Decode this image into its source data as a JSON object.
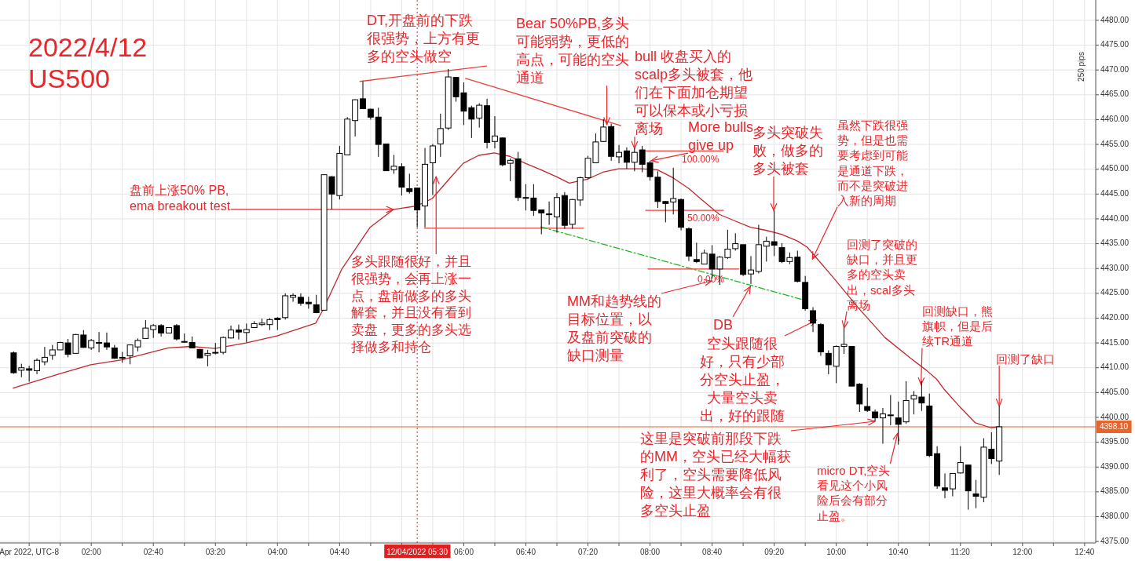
{
  "chart_data": {
    "type": "candlestick",
    "title": "2022/4/12",
    "subtitle": "US500",
    "color": "#000000",
    "x": [
      1.1667,
      1.25,
      1.3333,
      1.4167,
      1.5,
      1.5833,
      1.6667,
      1.75,
      1.8333,
      1.9167,
      2,
      2.0833,
      2.1667,
      2.25,
      2.3333,
      2.4167,
      2.5,
      2.5833,
      2.6667,
      2.75,
      2.8333,
      2.9167,
      3,
      3.0833,
      3.1667,
      3.25,
      3.3333,
      3.4167,
      3.5,
      3.5833,
      3.6667,
      3.75,
      3.8333,
      3.9167,
      4,
      4.0833,
      4.1667,
      4.25,
      4.3333,
      4.4167,
      4.5,
      4.5833,
      4.6667,
      4.75,
      4.8333,
      4.9167,
      5,
      5.0833,
      5.1667,
      5.25,
      5.3333,
      5.4167,
      5.5,
      5.5833,
      5.6667,
      5.75,
      5.8333,
      5.9167,
      6,
      6.0833,
      6.1667,
      6.25,
      6.3333,
      6.4167,
      6.5,
      6.5833,
      6.6667,
      6.75,
      6.8333,
      6.9167,
      7,
      7.0833,
      7.1667,
      7.25,
      7.3333,
      7.4167,
      7.5,
      7.5833,
      7.6667,
      7.75,
      7.8333,
      7.9167,
      8,
      8.0833,
      8.1667,
      8.25,
      8.3333,
      8.4167,
      8.5,
      8.5833,
      8.6667,
      8.75,
      8.8333,
      8.9167,
      9,
      9.0833,
      9.1667,
      9.25,
      9.3333,
      9.4167,
      9.5,
      9.5833,
      9.6667,
      9.75,
      9.8333,
      9.9167,
      10,
      10.0833,
      10.1667,
      10.25,
      10.3333,
      10.4167,
      10.5,
      10.5833,
      10.6667,
      10.75,
      10.8333,
      10.9167,
      11,
      11.0833,
      11.1667,
      11.25,
      11.3333,
      11.4167,
      11.5,
      11.5833,
      11.6667,
      11.75
    ],
    "ohlc": [
      [
        4413.0,
        4413.3,
        4408.8,
        4409.0
      ],
      [
        4409.5,
        4410.8,
        4408.1,
        4410.0
      ],
      [
        4409.8,
        4410.4,
        4407.2,
        4409.5
      ],
      [
        4409.4,
        4411.9,
        4408.7,
        4411.5
      ],
      [
        4411.2,
        4414.2,
        4410.5,
        4412.1
      ],
      [
        4412.5,
        4414.6,
        4411.6,
        4413.6
      ],
      [
        4413.6,
        4415.2,
        4413.6,
        4415.1
      ],
      [
        4415.0,
        4415.8,
        4412.1,
        4412.7
      ],
      [
        4412.9,
        4416.8,
        4412.8,
        4416.7
      ],
      [
        4416.6,
        4417.6,
        4414.0,
        4414.1
      ],
      [
        4414.0,
        4415.8,
        4413.6,
        4415.5
      ],
      [
        4415.1,
        4417.2,
        4413.1,
        4415.0
      ],
      [
        4415.0,
        4417.1,
        4413.6,
        4414.2
      ],
      [
        4414.0,
        4414.6,
        4411.8,
        4411.9
      ],
      [
        4412.0,
        4413.2,
        4411.0,
        4412.1
      ],
      [
        4412.4,
        4414.7,
        4410.7,
        4414.6
      ],
      [
        4414.2,
        4415.9,
        4413.3,
        4415.5
      ],
      [
        4415.9,
        4419.6,
        4415.9,
        4418.0
      ],
      [
        4417.7,
        4418.8,
        4416.0,
        4418.5
      ],
      [
        4418.5,
        4418.8,
        4416.3,
        4417.0
      ],
      [
        4417.0,
        4418.1,
        4417.0,
        4418.1
      ],
      [
        4418.5,
        4418.8,
        4415.5,
        4415.8
      ],
      [
        4415.3,
        4416.9,
        4415.0,
        4415.2
      ],
      [
        4415.1,
        4416.3,
        4413.9,
        4414.0
      ],
      [
        4413.7,
        4413.8,
        4411.9,
        4412.0
      ],
      [
        4412.5,
        4413.6,
        4410.3,
        4412.9
      ],
      [
        4413.0,
        4415.0,
        4412.7,
        4413.1
      ],
      [
        4413.1,
        4416.3,
        4412.7,
        4416.1
      ],
      [
        4416.0,
        4418.5,
        4415.9,
        4417.6
      ],
      [
        4417.6,
        4418.7,
        4415.7,
        4417.2
      ],
      [
        4417.1,
        4418.9,
        4415.1,
        4417.7
      ],
      [
        4418.1,
        4419.4,
        4418.0,
        4418.9
      ],
      [
        4418.7,
        4419.9,
        4418.4,
        4419.0
      ],
      [
        4418.7,
        4420.0,
        4417.6,
        4419.7
      ],
      [
        4420.0,
        4420.2,
        4417.6,
        4419.7
      ],
      [
        4420.1,
        4425.0,
        4419.7,
        4424.5
      ],
      [
        4424.2,
        4425.0,
        4423.3,
        4424.6
      ],
      [
        4424.2,
        4425.0,
        4422.5,
        4423.0
      ],
      [
        4423.2,
        4424.3,
        4421.9,
        4422.9
      ],
      [
        4422.7,
        4424.7,
        4421.0,
        4421.1
      ],
      [
        4421.6,
        4448.9,
        4421.5,
        4448.9
      ],
      [
        4448.5,
        4448.6,
        4441.9,
        4445.0
      ],
      [
        4444.7,
        4454.7,
        4443.9,
        4453.2
      ],
      [
        4452.9,
        4460.5,
        4452.9,
        4460.1
      ],
      [
        4459.8,
        4464.1,
        4456.6,
        4464.0
      ],
      [
        4464.2,
        4467.7,
        4462.2,
        4462.2
      ],
      [
        4462.1,
        4462.2,
        4460.0,
        4460.5
      ],
      [
        4460.5,
        4462.4,
        4452.5,
        4455.0
      ],
      [
        4455.1,
        4455.1,
        4449.7,
        4449.7
      ],
      [
        4449.9,
        4452.9,
        4449.1,
        4450.6
      ],
      [
        4450.5,
        4451.2,
        4444.7,
        4446.4
      ],
      [
        4446.1,
        4449.1,
        4445.1,
        4445.5
      ],
      [
        4446.2,
        4446.2,
        4438.3,
        4441.8
      ],
      [
        4442.6,
        4454.3,
        4438.3,
        4451.0
      ],
      [
        4451.3,
        4455.1,
        4444.8,
        4454.7
      ],
      [
        4455.1,
        4461.2,
        4452.5,
        4458.2
      ],
      [
        4458.3,
        4470.2,
        4457.9,
        4468.6
      ],
      [
        4468.5,
        4468.5,
        4463.6,
        4464.6
      ],
      [
        4465.4,
        4467.5,
        4458.9,
        4461.7
      ],
      [
        4462.4,
        4462.8,
        4456.3,
        4460.1
      ],
      [
        4460.3,
        4463.3,
        4458.4,
        4462.9
      ],
      [
        4462.8,
        4464.2,
        4454.2,
        4455.4
      ],
      [
        4455.6,
        4460.7,
        4454.2,
        4456.7
      ],
      [
        4456.3,
        4456.4,
        4450.6,
        4450.9
      ],
      [
        4451.2,
        4452.2,
        4447.6,
        4451.8
      ],
      [
        4452.1,
        4453.5,
        4443.6,
        4444.3
      ],
      [
        4444.3,
        4447.0,
        4441.7,
        4444.2
      ],
      [
        4444.2,
        4447.0,
        4440.6,
        4441.7
      ],
      [
        4441.8,
        4441.8,
        4436.9,
        4441.2
      ],
      [
        4441.0,
        4443.5,
        4438.8,
        4440.9
      ],
      [
        4440.4,
        4445.2,
        4437.2,
        4444.3
      ],
      [
        4444.7,
        4445.4,
        4438.0,
        4438.7
      ],
      [
        4438.9,
        4444.0,
        4438.0,
        4443.9
      ],
      [
        4443.8,
        4448.5,
        4442.6,
        4448.3
      ],
      [
        4448.3,
        4452.7,
        4448.0,
        4452.2
      ],
      [
        4451.3,
        4457.2,
        4451.2,
        4455.5
      ],
      [
        4455.6,
        4460.1,
        4455.5,
        4458.5
      ],
      [
        4458.6,
        4459.2,
        4451.7,
        4452.6
      ],
      [
        4452.5,
        4454.9,
        4451.2,
        4453.4
      ],
      [
        4453.7,
        4454.4,
        4450.1,
        4451.4
      ],
      [
        4451.4,
        4454.2,
        4449.6,
        4453.4
      ],
      [
        4453.9,
        4454.7,
        4449.4,
        4451.0
      ],
      [
        4451.3,
        4451.7,
        4447.7,
        4448.5
      ],
      [
        4448.4,
        4449.6,
        4442.2,
        4443.5
      ],
      [
        4443.5,
        4443.6,
        4439.3,
        4443.1
      ],
      [
        4443.4,
        4450.3,
        4440.9,
        4444.1
      ],
      [
        4443.9,
        4444.1,
        4437.7,
        4438.3
      ],
      [
        4438.0,
        4438.3,
        4431.5,
        4432.5
      ],
      [
        4431.8,
        4435.2,
        4431.1,
        4431.4
      ],
      [
        4430.9,
        4433.8,
        4430.9,
        4433.1
      ],
      [
        4432.9,
        4434.7,
        4428.0,
        4429.9
      ],
      [
        4429.9,
        4432.5,
        4426.7,
        4432.3
      ],
      [
        4432.2,
        4437.8,
        4431.9,
        4433.9
      ],
      [
        4434.0,
        4437.1,
        4433.6,
        4435.0
      ],
      [
        4434.8,
        4434.8,
        4428.5,
        4428.8
      ],
      [
        4428.9,
        4432.5,
        4426.9,
        4429.7
      ],
      [
        4429.4,
        4438.8,
        4429.0,
        4434.8
      ],
      [
        4434.5,
        4436.4,
        4431.4,
        4435.5
      ],
      [
        4435.4,
        4441.7,
        4432.5,
        4434.7
      ],
      [
        4434.2,
        4435.1,
        4431.1,
        4431.4
      ],
      [
        4431.4,
        4433.2,
        4430.9,
        4432.2
      ],
      [
        4432.3,
        4433.6,
        4427.2,
        4427.4
      ],
      [
        4427.2,
        4428.5,
        4421.5,
        4421.9
      ],
      [
        4421.5,
        4422.2,
        4417.2,
        4419.0
      ],
      [
        4418.7,
        4419.0,
        4412.4,
        4413.2
      ],
      [
        4412.9,
        4413.5,
        4408.7,
        4410.6
      ],
      [
        4410.3,
        4414.5,
        4406.9,
        4414.3
      ],
      [
        4414.3,
        4418.0,
        4412.8,
        4414.7
      ],
      [
        4414.3,
        4414.3,
        4406.3,
        4406.3
      ],
      [
        4406.7,
        4406.9,
        4401.1,
        4402.7
      ],
      [
        4402.2,
        4406.0,
        4401.1,
        4401.4
      ],
      [
        4401.1,
        4401.6,
        4399.2,
        4399.9
      ],
      [
        4399.9,
        4401.9,
        4394.7,
        4400.7
      ],
      [
        4400.4,
        4404.5,
        4398.4,
        4400.5
      ],
      [
        4399.9,
        4403.2,
        4394.5,
        4398.6
      ],
      [
        4399.1,
        4407.3,
        4398.7,
        4403.4
      ],
      [
        4403.7,
        4405.3,
        4400.6,
        4404.4
      ],
      [
        4404.1,
        4407.3,
        4401.3,
        4402.9
      ],
      [
        4402.3,
        4404.8,
        4392.0,
        4392.3
      ],
      [
        4392.7,
        4394.2,
        4385.6,
        4386.2
      ],
      [
        4385.8,
        4388.7,
        4383.7,
        4385.3
      ],
      [
        4385.6,
        4388.7,
        4384.1,
        4388.7
      ],
      [
        4388.8,
        4394.2,
        4388.7,
        4390.9
      ],
      [
        4390.4,
        4390.4,
        4381.4,
        4385.2
      ],
      [
        4384.6,
        4387.4,
        4381.7,
        4384.1
      ],
      [
        4383.9,
        4395.8,
        4382.9,
        4394.0
      ],
      [
        4393.6,
        4397.0,
        4390.6,
        4391.7
      ],
      [
        4391.2,
        4402.3,
        4388.4,
        4398.1
      ]
    ],
    "series": [
      {
        "type": "line",
        "color": "#c0282d",
        "x": [
          1.161,
          1.661,
          1.994,
          2.328,
          2.828,
          3.078,
          3.328,
          3.661,
          3.994,
          4.411,
          4.494,
          4.688,
          4.994,
          5.244,
          5.494,
          5.661,
          5.828,
          5.994,
          6.161,
          6.328,
          6.494,
          6.661,
          6.828,
          6.994,
          7.133,
          7.328,
          7.494,
          7.661,
          7.911,
          8.078,
          8.244,
          8.411,
          8.578,
          8.744,
          8.911,
          9.078,
          9.244,
          9.411,
          9.578,
          9.688,
          9.967,
          10.244,
          10.522,
          10.8,
          10.967,
          11.078,
          11.161,
          11.328,
          11.494,
          11.661,
          11.744
        ],
        "values": [
          4405.9,
          4408.8,
          4410.6,
          4411.6,
          4414.0,
          4414.3,
          4413.9,
          4415.0,
          4416.4,
          4419.0,
          4421.9,
          4429.8,
          4438.3,
          4441.9,
          4442.6,
          4444.1,
          4447.7,
          4451.2,
          4452.8,
          4453.3,
          4452.6,
          4451.2,
          4449.9,
          4448.5,
          4447.2,
          4448.0,
          4449.4,
          4450.1,
          4450.1,
          4449.9,
          4448.3,
          4446.2,
          4443.5,
          4440.9,
          4439.6,
          4438.3,
          4437.7,
          4436.9,
          4435.6,
          4434.3,
          4428.2,
          4421.9,
          4416.1,
          4411.9,
          4409.5,
          4407.7,
          4405.6,
          4402.1,
          4398.9,
          4397.9,
          4398.1
        ]
      },
      {
        "type": "line",
        "color": "#e8413c",
        "x": [
          4.886,
          6.245
        ],
        "values": [
          4467.7,
          4470.8
        ]
      },
      {
        "type": "line",
        "color": "#e8413c",
        "x": [
          6.019,
          7.686
        ],
        "values": [
          4468.3,
          4458.8
        ]
      },
      {
        "type": "line",
        "color": "#e8413c",
        "x": [
          5.578,
          7.286
        ],
        "values": [
          4438.1,
          4438.1
        ]
      },
      {
        "type": "line",
        "color": "#22b822",
        "line_style": "dashed",
        "x": [
          6.828,
          9.661
        ],
        "values": [
          4438.4,
          4423.6
        ]
      },
      {
        "type": "line",
        "color": "#e8413c",
        "x": [
          7.954,
          8.787
        ],
        "values": [
          4453.7,
          4453.7
        ]
      },
      {
        "type": "line",
        "color": "#e8413c",
        "x": [
          7.954,
          8.787
        ],
        "values": [
          4441.7,
          4441.7
        ]
      },
      {
        "type": "line",
        "color": "#e8413c",
        "x": [
          7.979,
          8.953
        ],
        "values": [
          4429.9,
          4429.9
        ]
      }
    ],
    "xlim": [
      1.02,
      12.786
    ],
    "ylim": [
      4374.7,
      4484.1
    ],
    "xticks": [
      {
        "value": 1.3333,
        "label": "Apr 2022, UTC-8"
      },
      {
        "value": 1.6667,
        "label": null
      },
      {
        "value": 2,
        "label": "02:00"
      },
      {
        "value": 2.3333,
        "label": null
      },
      {
        "value": 2.6667,
        "label": "02:40"
      },
      {
        "value": 3,
        "label": null
      },
      {
        "value": 3.3333,
        "label": "03:20"
      },
      {
        "value": 3.6667,
        "label": null
      },
      {
        "value": 4,
        "label": "04:00"
      },
      {
        "value": 4.3333,
        "label": null
      },
      {
        "value": 4.6667,
        "label": "04:40"
      },
      {
        "value": 5,
        "label": null
      },
      {
        "value": 5.3333,
        "label": null
      },
      {
        "value": 5.6667,
        "label": null
      },
      {
        "value": 6,
        "label": "06:00"
      },
      {
        "value": 6.3333,
        "label": null
      },
      {
        "value": 6.6667,
        "label": "06:40"
      },
      {
        "value": 7,
        "label": null
      },
      {
        "value": 7.3333,
        "label": "07:20"
      },
      {
        "value": 7.6667,
        "label": null
      },
      {
        "value": 8,
        "label": "08:00"
      },
      {
        "value": 8.3333,
        "label": null
      },
      {
        "value": 8.6667,
        "label": "08:40"
      },
      {
        "value": 9,
        "label": null
      },
      {
        "value": 9.3333,
        "label": "09:20"
      },
      {
        "value": 9.6667,
        "label": null
      },
      {
        "value": 10,
        "label": "10:00"
      },
      {
        "value": 10.3333,
        "label": null
      },
      {
        "value": 10.6667,
        "label": "10:40"
      },
      {
        "value": 11,
        "label": null
      },
      {
        "value": 11.3333,
        "label": "11:20"
      },
      {
        "value": 11.6667,
        "label": null
      },
      {
        "value": 12,
        "label": "12:00"
      },
      {
        "value": 12.3333,
        "label": null
      },
      {
        "value": 12.6667,
        "label": "12:40"
      }
    ],
    "yticks": [
      {
        "value": 4375,
        "label": "4375.00"
      },
      {
        "value": 4380,
        "label": "4380.00"
      },
      {
        "value": 4385,
        "label": "4385.00"
      },
      {
        "value": 4390,
        "label": "4390.00"
      },
      {
        "value": 4395,
        "label": "4395.00"
      },
      {
        "value": 4400,
        "label": "4400.00"
      },
      {
        "value": 4405,
        "label": "4405.00"
      },
      {
        "value": 4410,
        "label": "4410.00"
      },
      {
        "value": 4415,
        "label": "4415.00"
      },
      {
        "value": 4420,
        "label": "4420.00"
      },
      {
        "value": 4425,
        "label": "4425.00"
      },
      {
        "value": 4430,
        "label": "4430.00"
      },
      {
        "value": 4435,
        "label": "4435.00"
      },
      {
        "value": 4440,
        "label": "4440.00"
      },
      {
        "value": 4445,
        "label": "4445.00"
      },
      {
        "value": 4450,
        "label": "4450.00"
      },
      {
        "value": 4455,
        "label": "4455.00"
      },
      {
        "value": 4460,
        "label": "4460.00"
      },
      {
        "value": 4465,
        "label": "4465.00"
      },
      {
        "value": 4470,
        "label": "4470.00"
      },
      {
        "value": 4475,
        "label": "4475.00"
      },
      {
        "value": 4480,
        "label": "4480.00"
      }
    ],
    "grid": true,
    "ref_lines": [
      {
        "axis": "x",
        "value": 5.5,
        "label": "12/04/2022 05:30",
        "color": "#e02020",
        "line_style": "dotted"
      },
      {
        "axis": "y",
        "value": 4398.1,
        "label": "4398.10",
        "color": "#e8642c",
        "line_style": "solid"
      }
    ],
    "annotations": [
      "DT,开盘前的下跌很强势，上方有更多的空头做空",
      {
        "text": "Bear 50%PB,多头可能弱势，更低的高点，可能的空头通道",
        "x": 7.536,
        "y": 4459.0
      },
      {
        "text": "bull 收盘买入的scalp多头被套，他们在下面加仓期望可以保本或小亏损离场",
        "x": 7.8333,
        "y": 4454.2
      },
      {
        "text": "More bulls give up",
        "x": 8.011,
        "y": 4451.7
      },
      {
        "text": "多头突破失败，做多的多头被套",
        "x": 9.328,
        "y": 4441.7
      },
      {
        "text": "虽然下跌很强势，但是也需要考虑到可能是通道下跌，而不是突破进入新的周期",
        "x": 9.744,
        "y": 4431.9
      },
      {
        "text": "回测了突破的缺口，并且更多的空头卖出，scal多头离场",
        "x": 10.0833,
        "y": 4418.0
      },
      {
        "text": "回测缺口，熊旗帜，但是后续TR通道",
        "x": 10.91,
        "y": 4406.6
      },
      {
        "text": "回测了缺口",
        "x": 11.75,
        "y": 4402.3
      },
      {
        "text": "盘前上涨50% PB, ema breakout test",
        "x": 5.244,
        "y": 4441.9
      },
      {
        "text": "多头跟随很好，并且很强势，会再上涨一点，盘前做多的多头解套，并且没有看到卖盘，更多的多头选择做多和持仓",
        "x": 5.703,
        "y": 4448.5
      },
      {
        "text": "MM和趋势线的目标位置，以及盘前突破的缺口测量",
        "x": 8.661,
        "y": 4427.5
      },
      {
        "text": "DB",
        "x": 9.078,
        "y": 4426.4
      },
      {
        "text": "空头跟随很好，只有少部分空头止盈，大量空头卖出，好的跟随",
        "x": 9.786,
        "y": 4419.6
      },
      {
        "text": "这里是突破前那段下跌的MM，空头已经大幅获利了，空头需要降低风险，这里大概率会有很多空头止盈",
        "x": 10.4167,
        "y": 4399.2
      },
      {
        "text": "micro DT,空头看见这个小风险后会有部分止盈。",
        "x": 10.66,
        "y": 4396.8
      },
      "100.00%",
      "50.00%",
      "0.00%",
      "250 pips"
    ]
  }
}
